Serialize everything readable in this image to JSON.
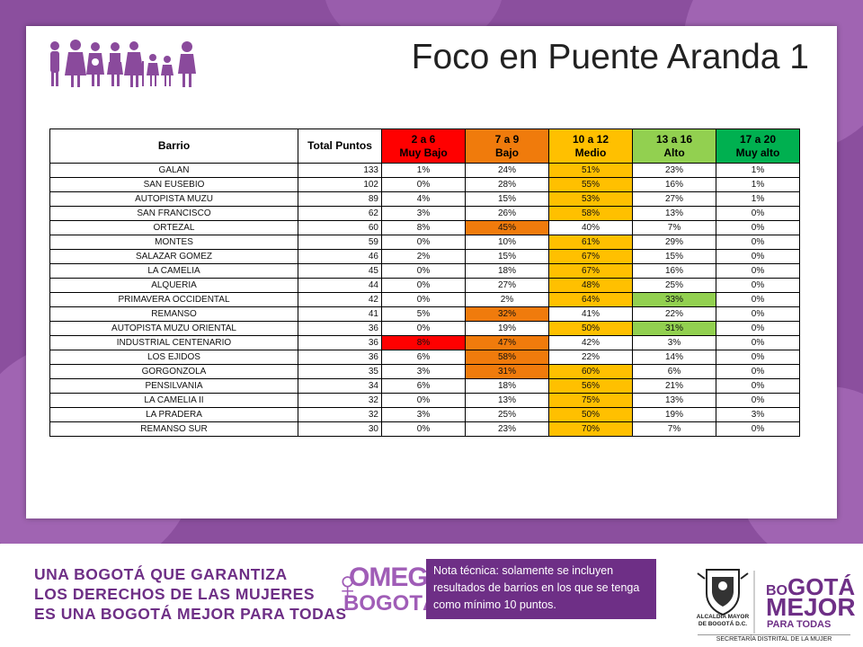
{
  "slide": {
    "title": "Foco en Puente Aranda 1"
  },
  "table": {
    "headers": [
      {
        "l1": "Barrio",
        "l2": ""
      },
      {
        "l1": "Total Puntos",
        "l2": ""
      },
      {
        "l1": "2 a 6",
        "l2": "Muy Bajo"
      },
      {
        "l1": "7 a 9",
        "l2": "Bajo"
      },
      {
        "l1": "10 a 12",
        "l2": "Medio"
      },
      {
        "l1": "13 a 16",
        "l2": "Alto"
      },
      {
        "l1": "17 a 20",
        "l2": "Muy alto"
      }
    ],
    "header_colors": [
      "#ffffff",
      "#ffffff",
      "#ff0000",
      "#f07b0c",
      "#ffc000",
      "#92d050",
      "#00b050"
    ],
    "rows": [
      {
        "barrio": "GALAN",
        "total": "133",
        "v": [
          "1%",
          "24%",
          "51%",
          "23%",
          "1%"
        ],
        "hl": [
          null,
          null,
          "yellow",
          null,
          null
        ]
      },
      {
        "barrio": "SAN EUSEBIO",
        "total": "102",
        "v": [
          "0%",
          "28%",
          "55%",
          "16%",
          "1%"
        ],
        "hl": [
          null,
          null,
          "yellow",
          null,
          null
        ]
      },
      {
        "barrio": "AUTOPISTA MUZU",
        "total": "89",
        "v": [
          "4%",
          "15%",
          "53%",
          "27%",
          "1%"
        ],
        "hl": [
          null,
          null,
          "yellow",
          null,
          null
        ]
      },
      {
        "barrio": "SAN FRANCISCO",
        "total": "62",
        "v": [
          "3%",
          "26%",
          "58%",
          "13%",
          "0%"
        ],
        "hl": [
          null,
          null,
          "yellow",
          null,
          null
        ]
      },
      {
        "barrio": "ORTEZAL",
        "total": "60",
        "v": [
          "8%",
          "45%",
          "40%",
          "7%",
          "0%"
        ],
        "hl": [
          null,
          "orange",
          null,
          null,
          null
        ]
      },
      {
        "barrio": "MONTES",
        "total": "59",
        "v": [
          "0%",
          "10%",
          "61%",
          "29%",
          "0%"
        ],
        "hl": [
          null,
          null,
          "yellow",
          null,
          null
        ]
      },
      {
        "barrio": "SALAZAR GOMEZ",
        "total": "46",
        "v": [
          "2%",
          "15%",
          "67%",
          "15%",
          "0%"
        ],
        "hl": [
          null,
          null,
          "yellow",
          null,
          null
        ]
      },
      {
        "barrio": "LA CAMELIA",
        "total": "45",
        "v": [
          "0%",
          "18%",
          "67%",
          "16%",
          "0%"
        ],
        "hl": [
          null,
          null,
          "yellow",
          null,
          null
        ]
      },
      {
        "barrio": "ALQUERIA",
        "total": "44",
        "v": [
          "0%",
          "27%",
          "48%",
          "25%",
          "0%"
        ],
        "hl": [
          null,
          null,
          "yellow",
          null,
          null
        ]
      },
      {
        "barrio": "PRIMAVERA OCCIDENTAL",
        "total": "42",
        "v": [
          "0%",
          "2%",
          "64%",
          "33%",
          "0%"
        ],
        "hl": [
          null,
          null,
          "yellow",
          "green",
          null
        ]
      },
      {
        "barrio": "REMANSO",
        "total": "41",
        "v": [
          "5%",
          "32%",
          "41%",
          "22%",
          "0%"
        ],
        "hl": [
          null,
          "orange",
          null,
          null,
          null
        ]
      },
      {
        "barrio": "AUTOPISTA MUZU ORIENTAL",
        "total": "36",
        "v": [
          "0%",
          "19%",
          "50%",
          "31%",
          "0%"
        ],
        "hl": [
          null,
          null,
          "yellow",
          "green",
          null
        ]
      },
      {
        "barrio": "INDUSTRIAL CENTENARIO",
        "total": "36",
        "v": [
          "8%",
          "47%",
          "42%",
          "3%",
          "0%"
        ],
        "hl": [
          "red",
          "orange",
          null,
          null,
          null
        ]
      },
      {
        "barrio": "LOS EJIDOS",
        "total": "36",
        "v": [
          "6%",
          "58%",
          "22%",
          "14%",
          "0%"
        ],
        "hl": [
          null,
          "orange",
          null,
          null,
          null
        ]
      },
      {
        "barrio": "GORGONZOLA",
        "total": "35",
        "v": [
          "3%",
          "31%",
          "60%",
          "6%",
          "0%"
        ],
        "hl": [
          null,
          "orange",
          "yellow",
          null,
          null
        ]
      },
      {
        "barrio": "PENSILVANIA",
        "total": "34",
        "v": [
          "6%",
          "18%",
          "56%",
          "21%",
          "0%"
        ],
        "hl": [
          null,
          null,
          "yellow",
          null,
          null
        ]
      },
      {
        "barrio": "LA CAMELIA II",
        "total": "32",
        "v": [
          "0%",
          "13%",
          "75%",
          "13%",
          "0%"
        ],
        "hl": [
          null,
          null,
          "yellow",
          null,
          null
        ]
      },
      {
        "barrio": "LA PRADERA",
        "total": "32",
        "v": [
          "3%",
          "25%",
          "50%",
          "19%",
          "3%"
        ],
        "hl": [
          null,
          null,
          "yellow",
          null,
          null
        ]
      },
      {
        "barrio": "REMANSO SUR",
        "total": "30",
        "v": [
          "0%",
          "23%",
          "70%",
          "7%",
          "0%"
        ],
        "hl": [
          null,
          null,
          "yellow",
          null,
          null
        ]
      }
    ]
  },
  "footer": {
    "slogan": [
      "UNA BOGOTÁ QUE GARANTIZA",
      "LOS DERECHOS DE LAS MUJERES",
      "ES UNA BOGOTÁ MEJOR PARA TODAS"
    ],
    "omeg_top": "OMEG",
    "omeg_bottom": "BOGOTÁ",
    "note": "Nota técnica: solamente se incluyen resultados de barrios en los que se tenga como mínimo 10 puntos.",
    "alcaldia": [
      "ALCALDÍA MAYOR",
      "DE BOGOTÁ D.C."
    ],
    "bogota_brand_1_small": "BO",
    "bogota_brand_1": "GOTÁ",
    "bogota_brand_2": "MEJOR",
    "bogota_brand_3": "PARA TODAS",
    "secretaria": "SECRETARÍA DISTRITAL DE LA MUJER"
  },
  "colors": {
    "brand_purple": "#6e2f86",
    "background_purple": "#8b4f9e",
    "muy_bajo": "#ff0000",
    "bajo": "#f07b0c",
    "medio": "#ffc000",
    "alto": "#92d050",
    "muy_alto": "#00b050"
  },
  "icons": [
    "women-family-icon",
    "venus-icon",
    "bogota-shield-icon"
  ]
}
